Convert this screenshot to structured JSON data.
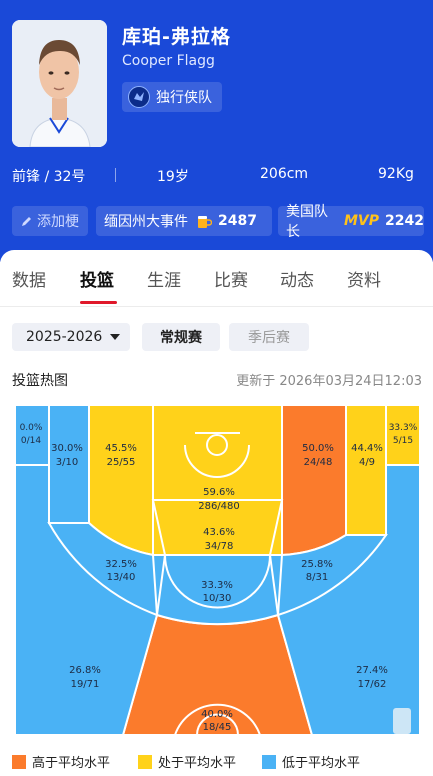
{
  "player": {
    "name_cn": "库珀-弗拉格",
    "name_en": "Cooper Flagg",
    "team": "独行侠队",
    "position_number": "前锋 / 32号",
    "age": "19岁",
    "height": "206cm",
    "weight": "92Kg"
  },
  "tags": {
    "add_nickname": "添加梗",
    "event_label": "缅因州大事件",
    "event_count": "2487",
    "captain_label": "美国队长",
    "mvp_badge": "MVP",
    "captain_count": "2242"
  },
  "tabs": [
    "数据",
    "投篮",
    "生涯",
    "比赛",
    "动态",
    "资料"
  ],
  "active_tab": "投篮",
  "filters": {
    "season": "2025-2026",
    "regular": "常规赛",
    "playoffs": "季后赛"
  },
  "heatmap": {
    "title": "投篮热图",
    "updated": "更新于 2026年03月24日12:03",
    "zones": [
      {
        "pct": "0.0%",
        "made_att": "0/14",
        "level": "low"
      },
      {
        "pct": "30.0%",
        "made_att": "3/10",
        "level": "low"
      },
      {
        "pct": "45.5%",
        "made_att": "25/55",
        "level": "mid"
      },
      {
        "pct": "59.6%",
        "made_att": "286/480",
        "level": "mid"
      },
      {
        "pct": "50.0%",
        "made_att": "24/48",
        "level": "high"
      },
      {
        "pct": "44.4%",
        "made_att": "4/9",
        "level": "mid"
      },
      {
        "pct": "33.3%",
        "made_att": "5/15",
        "level": "mid"
      },
      {
        "pct": "43.6%",
        "made_att": "34/78",
        "level": "mid"
      },
      {
        "pct": "32.5%",
        "made_att": "13/40",
        "level": "low"
      },
      {
        "pct": "25.8%",
        "made_att": "8/31",
        "level": "low"
      },
      {
        "pct": "33.3%",
        "made_att": "10/30",
        "level": "low"
      },
      {
        "pct": "26.8%",
        "made_att": "19/71",
        "level": "low"
      },
      {
        "pct": "27.4%",
        "made_att": "17/62",
        "level": "low"
      },
      {
        "pct": "40.0%",
        "made_att": "18/45",
        "level": "high"
      }
    ]
  },
  "legend": {
    "high": "高于平均水平",
    "mid": "处于平均水平",
    "low": "低于平均水平"
  },
  "colors": {
    "header_bg": "#1a49d8",
    "high": "#fb7b2c",
    "mid": "#ffd21a",
    "low": "#4ab2f5",
    "tab_indicator": "#e0182a",
    "mvp": "#ffc21a"
  }
}
